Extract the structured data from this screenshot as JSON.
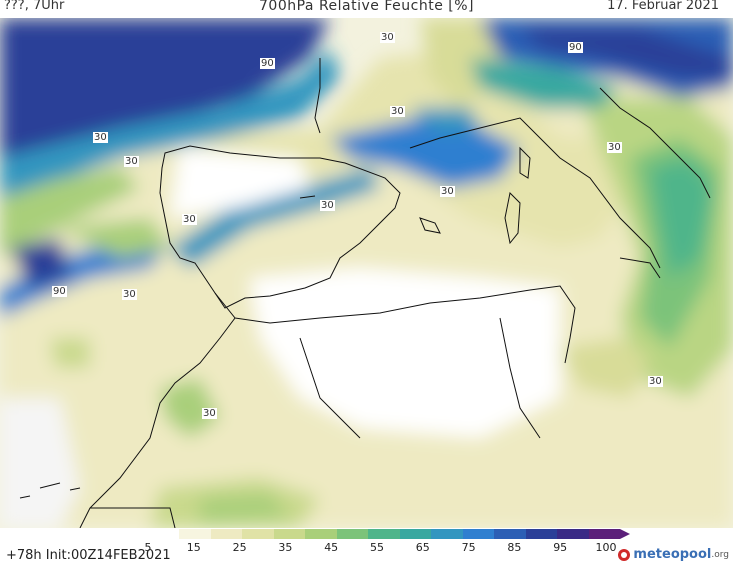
{
  "header": {
    "location_time": "???, 7Uhr",
    "title": "700hPa Relative Feuchte [%]",
    "date": "17. Februar 2021"
  },
  "map": {
    "contour_labels": [
      "30",
      "30",
      "90",
      "90",
      "30",
      "30",
      "30",
      "30",
      "30",
      "90",
      "30",
      "30",
      "30",
      "30"
    ]
  },
  "colorbar": {
    "colors": [
      "#ffffff",
      "#f7f5e0",
      "#eeeac2",
      "#e0e2a6",
      "#c9d98c",
      "#a9cf7a",
      "#7cc37a",
      "#4fb58a",
      "#38a8a0",
      "#3296c0",
      "#2f7fd0",
      "#2c5fb5",
      "#2b3f98",
      "#3a2a86",
      "#5b1f7a"
    ],
    "ticks": [
      "5",
      "15",
      "25",
      "35",
      "45",
      "55",
      "65",
      "75",
      "85",
      "95",
      "100"
    ]
  },
  "footer": {
    "run_info": "+78h Init:00Z14FEB2021",
    "logo_text": "meteopool",
    "logo_suffix": ".org"
  }
}
